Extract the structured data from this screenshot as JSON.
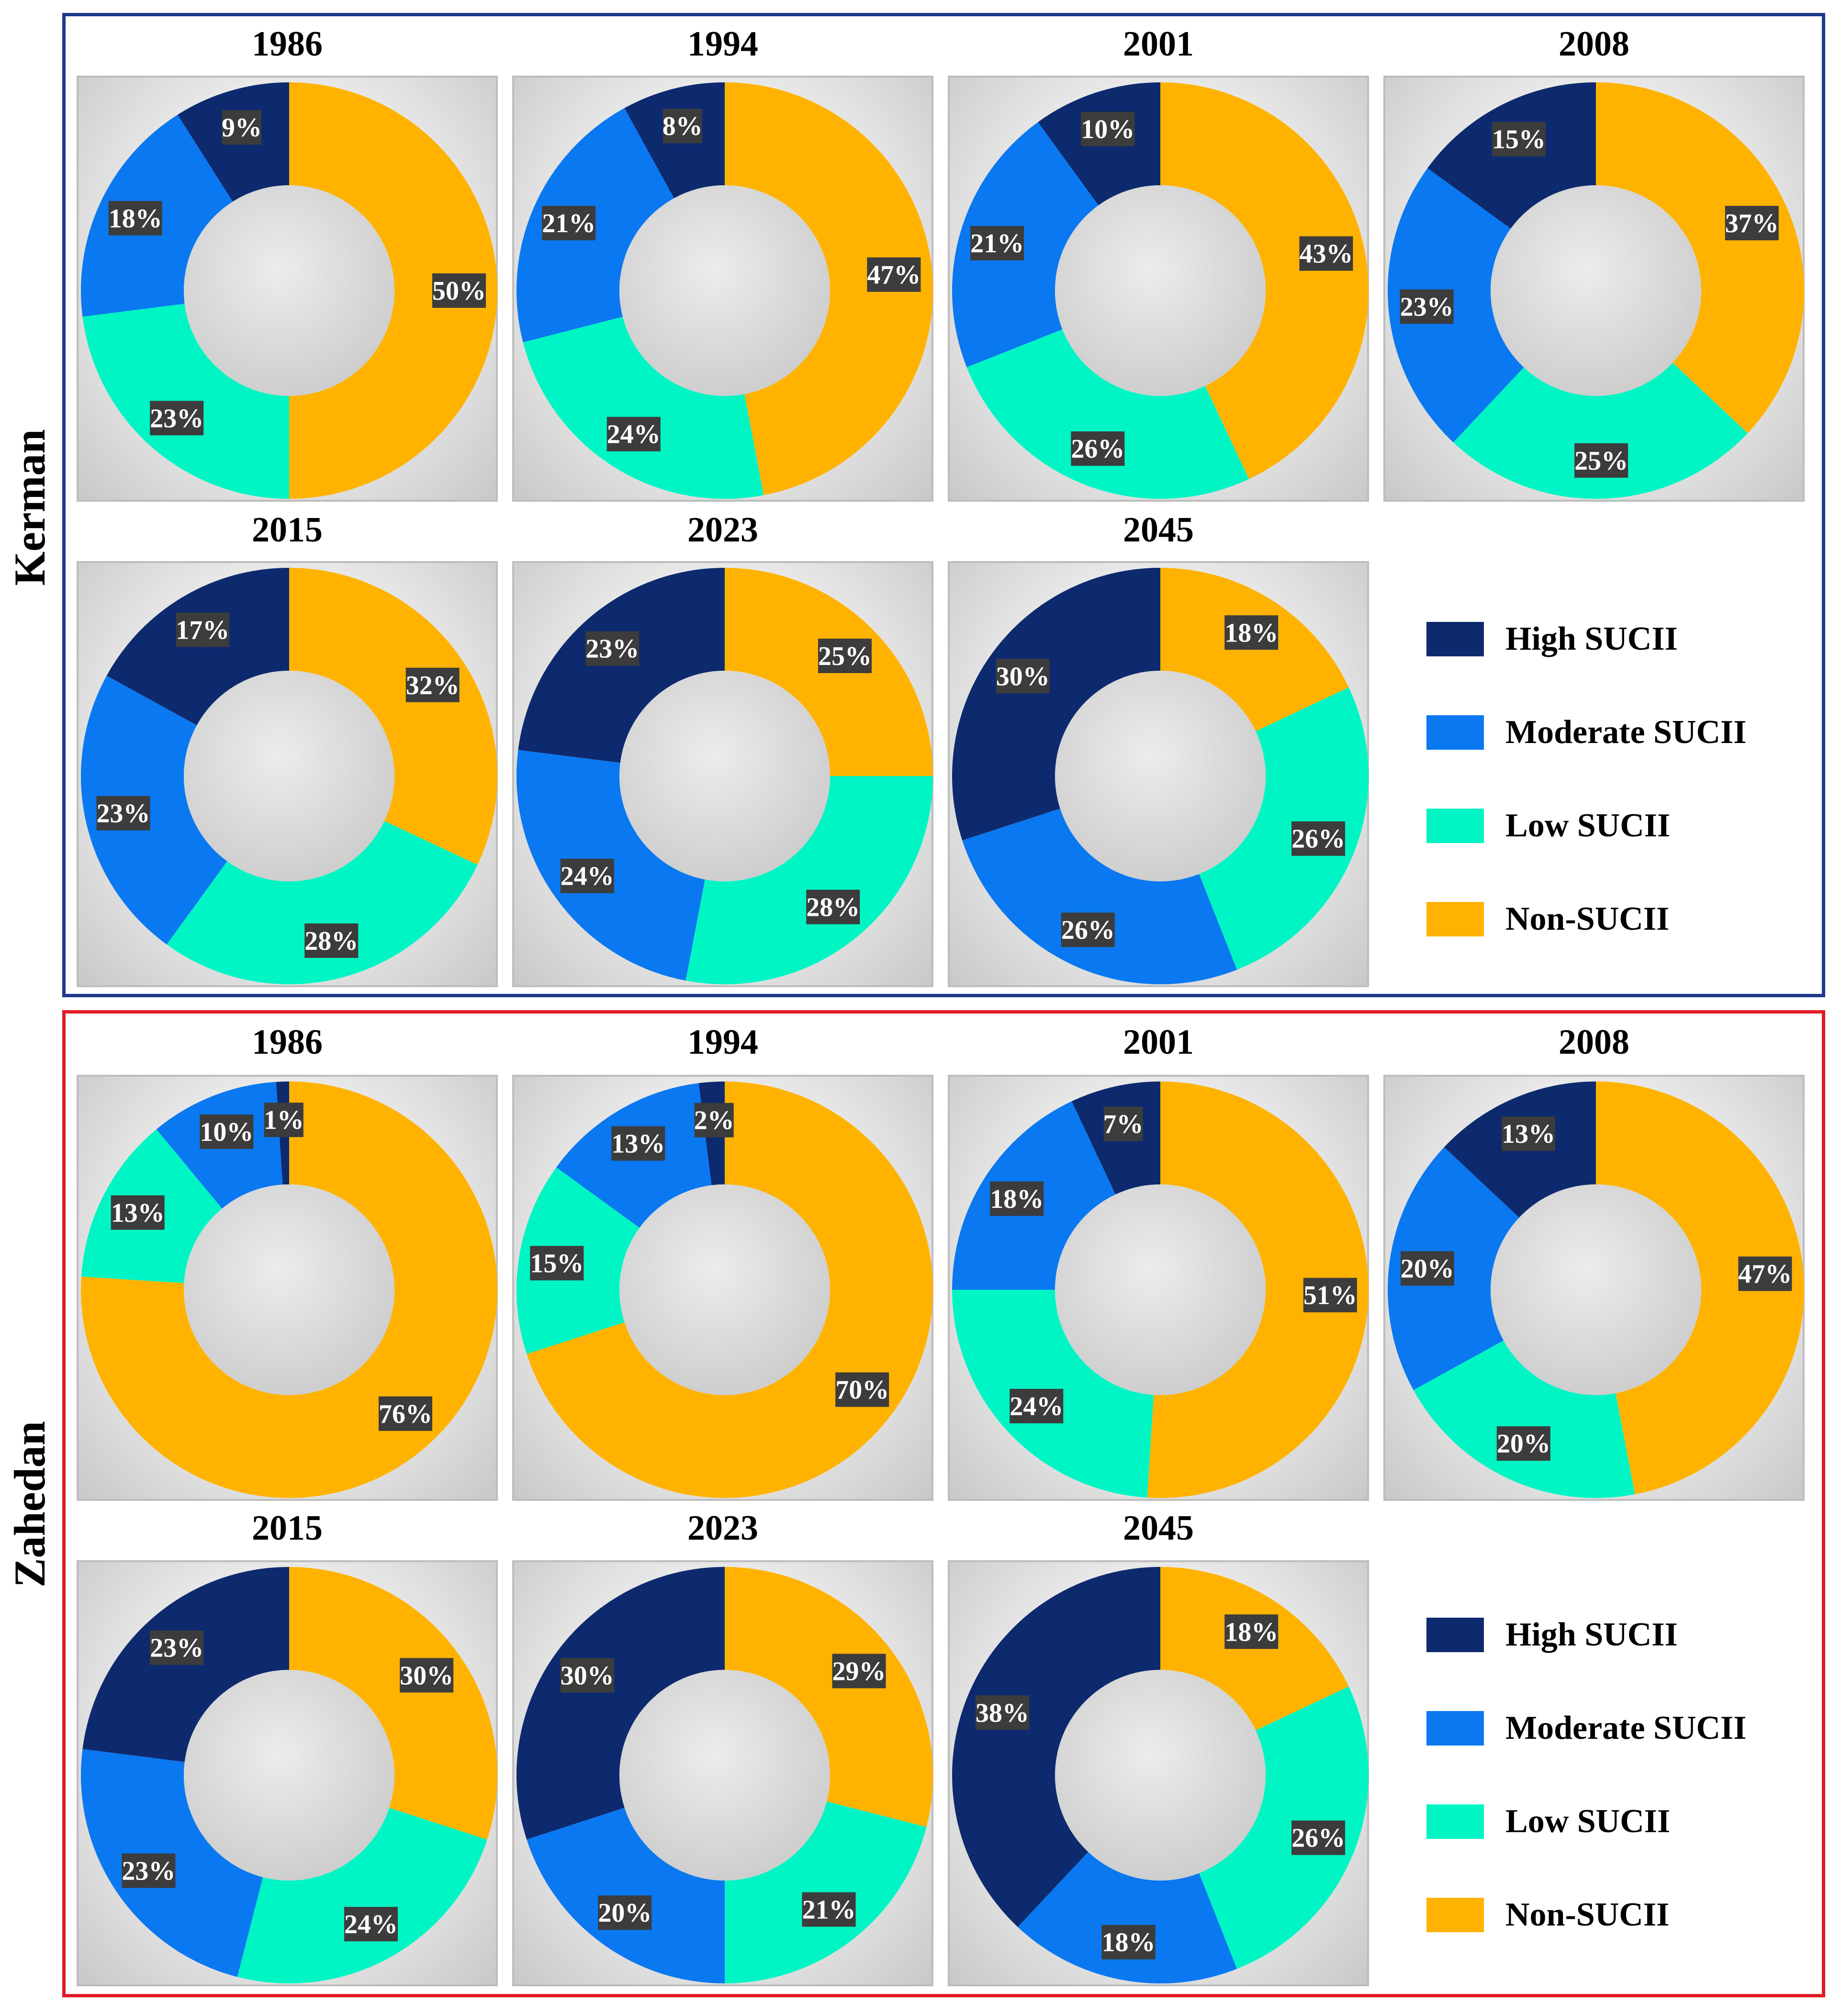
{
  "legend": [
    {
      "name": "High SUCII",
      "color": "#0d2a6e"
    },
    {
      "name": "Moderate SUCII",
      "color": "#0a78f0"
    },
    {
      "name": "Low SUCII",
      "color": "#00f5c4"
    },
    {
      "name": "Non-SUCII",
      "color": "#ffb300"
    }
  ],
  "regions": [
    {
      "name": "Kerman",
      "frame_color": "#1e3a8a"
    },
    {
      "name": "Zahedan",
      "frame_color": "#e01b24"
    }
  ],
  "chart_data": [
    {
      "type": "pie",
      "subtype": "donut",
      "region": "Kerman",
      "title": "1986",
      "categories": [
        "High SUCII",
        "Moderate SUCII",
        "Low SUCII",
        "Non-SUCII"
      ],
      "values": [
        9,
        18,
        23,
        50
      ],
      "labels": [
        "9%",
        "18%",
        "23%",
        "50%"
      ]
    },
    {
      "type": "pie",
      "subtype": "donut",
      "region": "Kerman",
      "title": "1994",
      "categories": [
        "High SUCII",
        "Moderate SUCII",
        "Low SUCII",
        "Non-SUCII"
      ],
      "values": [
        8,
        21,
        24,
        47
      ],
      "labels": [
        "8%",
        "21%",
        "24%",
        "47%"
      ]
    },
    {
      "type": "pie",
      "subtype": "donut",
      "region": "Kerman",
      "title": "2001",
      "categories": [
        "High SUCII",
        "Moderate SUCII",
        "Low SUCII",
        "Non-SUCII"
      ],
      "values": [
        10,
        21,
        26,
        43
      ],
      "labels": [
        "10%",
        "21%",
        "26%",
        "43%"
      ]
    },
    {
      "type": "pie",
      "subtype": "donut",
      "region": "Kerman",
      "title": "2008",
      "categories": [
        "High SUCII",
        "Moderate SUCII",
        "Low SUCII",
        "Non-SUCII"
      ],
      "values": [
        15,
        23,
        25,
        37
      ],
      "labels": [
        "15%",
        "23%",
        "25%",
        "37%"
      ]
    },
    {
      "type": "pie",
      "subtype": "donut",
      "region": "Kerman",
      "title": "2015",
      "categories": [
        "High SUCII",
        "Moderate SUCII",
        "Low SUCII",
        "Non-SUCII"
      ],
      "values": [
        17,
        23,
        28,
        32
      ],
      "labels": [
        "17%",
        "23%",
        "28%",
        "32%"
      ]
    },
    {
      "type": "pie",
      "subtype": "donut",
      "region": "Kerman",
      "title": "2023",
      "categories": [
        "High SUCII",
        "Moderate SUCII",
        "Low SUCII",
        "Non-SUCII"
      ],
      "values": [
        23,
        24,
        28,
        25
      ],
      "labels": [
        "23%",
        "24%",
        "28%",
        "25%"
      ]
    },
    {
      "type": "pie",
      "subtype": "donut",
      "region": "Kerman",
      "title": "2045",
      "categories": [
        "High SUCII",
        "Moderate SUCII",
        "Low SUCII",
        "Non-SUCII"
      ],
      "values": [
        30,
        26,
        26,
        18
      ],
      "labels": [
        "30%",
        "26%",
        "26%",
        "18%"
      ]
    },
    {
      "type": "pie",
      "subtype": "donut",
      "region": "Zahedan",
      "title": "1986",
      "categories": [
        "High SUCII",
        "Moderate SUCII",
        "Low SUCII",
        "Non-SUCII"
      ],
      "values": [
        1,
        10,
        13,
        76
      ],
      "labels": [
        "1%",
        "10%",
        "13%",
        "76%"
      ]
    },
    {
      "type": "pie",
      "subtype": "donut",
      "region": "Zahedan",
      "title": "1994",
      "categories": [
        "High SUCII",
        "Moderate SUCII",
        "Low SUCII",
        "Non-SUCII"
      ],
      "values": [
        2,
        13,
        15,
        70
      ],
      "labels": [
        "2%",
        "13%",
        "15%",
        "70%"
      ]
    },
    {
      "type": "pie",
      "subtype": "donut",
      "region": "Zahedan",
      "title": "2001",
      "categories": [
        "High SUCII",
        "Moderate SUCII",
        "Low SUCII",
        "Non-SUCII"
      ],
      "values": [
        7,
        18,
        24,
        51
      ],
      "labels": [
        "7%",
        "18%",
        "24%",
        "51%"
      ]
    },
    {
      "type": "pie",
      "subtype": "donut",
      "region": "Zahedan",
      "title": "2008",
      "categories": [
        "High SUCII",
        "Moderate SUCII",
        "Low SUCII",
        "Non-SUCII"
      ],
      "values": [
        13,
        20,
        20,
        47
      ],
      "labels": [
        "13%",
        "20%",
        "20%",
        "47%"
      ]
    },
    {
      "type": "pie",
      "subtype": "donut",
      "region": "Zahedan",
      "title": "2015",
      "categories": [
        "High SUCII",
        "Moderate SUCII",
        "Low SUCII",
        "Non-SUCII"
      ],
      "values": [
        23,
        23,
        24,
        30
      ],
      "labels": [
        "23%",
        "23%",
        "24%",
        "30%"
      ]
    },
    {
      "type": "pie",
      "subtype": "donut",
      "region": "Zahedan",
      "title": "2023",
      "categories": [
        "High SUCII",
        "Moderate SUCII",
        "Low SUCII",
        "Non-SUCII"
      ],
      "values": [
        30,
        20,
        21,
        29
      ],
      "labels": [
        "30%",
        "20%",
        "21%",
        "29%"
      ]
    },
    {
      "type": "pie",
      "subtype": "donut",
      "region": "Zahedan",
      "title": "2045",
      "categories": [
        "High SUCII",
        "Moderate SUCII",
        "Low SUCII",
        "Non-SUCII"
      ],
      "values": [
        38,
        18,
        26,
        18
      ],
      "labels": [
        "38%",
        "18%",
        "26%",
        "18%"
      ]
    }
  ]
}
